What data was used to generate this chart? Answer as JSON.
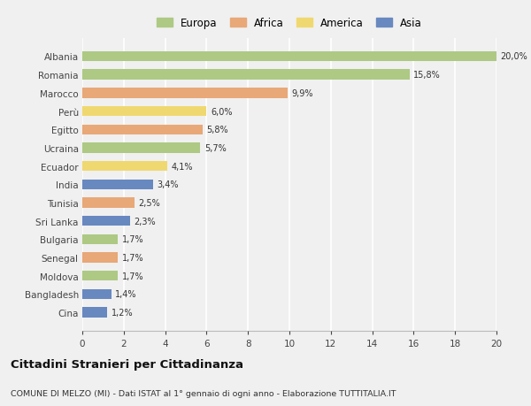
{
  "countries": [
    "Albania",
    "Romania",
    "Marocco",
    "Perù",
    "Egitto",
    "Ucraina",
    "Ecuador",
    "India",
    "Tunisia",
    "Sri Lanka",
    "Bulgaria",
    "Senegal",
    "Moldova",
    "Bangladesh",
    "Cina"
  ],
  "values": [
    20.0,
    15.8,
    9.9,
    6.0,
    5.8,
    5.7,
    4.1,
    3.4,
    2.5,
    2.3,
    1.7,
    1.7,
    1.7,
    1.4,
    1.2
  ],
  "labels": [
    "20,0%",
    "15,8%",
    "9,9%",
    "6,0%",
    "5,8%",
    "5,7%",
    "4,1%",
    "3,4%",
    "2,5%",
    "2,3%",
    "1,7%",
    "1,7%",
    "1,7%",
    "1,4%",
    "1,2%"
  ],
  "continents": [
    "Europa",
    "Europa",
    "Africa",
    "America",
    "Africa",
    "Europa",
    "America",
    "Asia",
    "Africa",
    "Asia",
    "Europa",
    "Africa",
    "Europa",
    "Asia",
    "Asia"
  ],
  "colors": {
    "Europa": "#adc984",
    "Africa": "#e8a878",
    "America": "#f0d870",
    "Asia": "#6888c0"
  },
  "xlim": [
    0,
    20
  ],
  "xticks": [
    0,
    2,
    4,
    6,
    8,
    10,
    12,
    14,
    16,
    18,
    20
  ],
  "title": "Cittadini Stranieri per Cittadinanza",
  "subtitle": "COMUNE DI MELZO (MI) - Dati ISTAT al 1° gennaio di ogni anno - Elaborazione TUTTITALIA.IT",
  "bg_color": "#f0f0f0",
  "grid_color": "#ffffff",
  "bar_height": 0.55
}
